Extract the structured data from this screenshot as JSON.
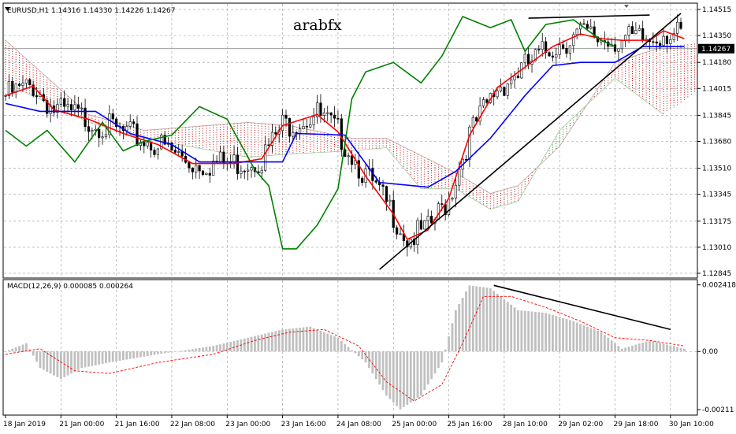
{
  "chart_data": {
    "type": "line",
    "header": "EURUSD,H1  1.14316 1.14330 1.14226 1.14267",
    "watermark": "arabfx",
    "price_axis": {
      "ticks": [
        "1.14515",
        "1.14350",
        "1.14180",
        "1.14015",
        "1.13845",
        "1.13680",
        "1.13510",
        "1.13345",
        "1.13175",
        "1.13010",
        "1.12845"
      ],
      "tick_values": [
        1.14515,
        1.1435,
        1.1418,
        1.14015,
        1.13845,
        1.1368,
        1.1351,
        1.13345,
        1.13175,
        1.1301,
        1.12845
      ],
      "range": [
        1.1282,
        1.1455
      ],
      "current_price": "1.14267",
      "current_value": 1.14267
    },
    "time_axis": {
      "labels": [
        "18 Jan 2019",
        "21 Jan 00:00",
        "21 Jan 16:00",
        "22 Jan 08:00",
        "23 Jan 00:00",
        "23 Jan 16:00",
        "24 Jan 08:00",
        "25 Jan 00:00",
        "25 Jan 16:00",
        "28 Jan 10:00",
        "29 Jan 02:00",
        "29 Jan 18:00",
        "30 Jan 10:00"
      ],
      "bars_per_label": 16,
      "total_bars": 200
    },
    "price_series": [
      {
        "color": "#ff0000",
        "role": "tenkan",
        "points": [
          [
            0,
            1.1397
          ],
          [
            8,
            1.1403
          ],
          [
            14,
            1.1388
          ],
          [
            24,
            1.1382
          ],
          [
            34,
            1.1373
          ],
          [
            44,
            1.1366
          ],
          [
            54,
            1.1354
          ],
          [
            66,
            1.1354
          ],
          [
            74,
            1.1357
          ],
          [
            80,
            1.1378
          ],
          [
            90,
            1.1385
          ],
          [
            96,
            1.1374
          ],
          [
            104,
            1.1346
          ],
          [
            112,
            1.1322
          ],
          [
            116,
            1.1306
          ],
          [
            122,
            1.1312
          ],
          [
            128,
            1.1332
          ],
          [
            134,
            1.1372
          ],
          [
            142,
            1.1402
          ],
          [
            150,
            1.1415
          ],
          [
            158,
            1.1428
          ],
          [
            166,
            1.1436
          ],
          [
            172,
            1.1433
          ],
          [
            178,
            1.1432
          ],
          [
            186,
            1.1432
          ],
          [
            190,
            1.1438
          ],
          [
            196,
            1.1433
          ]
        ]
      },
      {
        "color": "#0000ff",
        "role": "kijun",
        "points": [
          [
            0,
            1.1392
          ],
          [
            10,
            1.1387
          ],
          [
            26,
            1.1387
          ],
          [
            36,
            1.1373
          ],
          [
            48,
            1.1366
          ],
          [
            56,
            1.1355
          ],
          [
            80,
            1.1355
          ],
          [
            84,
            1.1373
          ],
          [
            98,
            1.1372
          ],
          [
            108,
            1.1342
          ],
          [
            122,
            1.1339
          ],
          [
            130,
            1.1349
          ],
          [
            140,
            1.137
          ],
          [
            150,
            1.1397
          ],
          [
            158,
            1.1416
          ],
          [
            166,
            1.1418
          ],
          [
            176,
            1.1418
          ],
          [
            184,
            1.1428
          ],
          [
            196,
            1.1428
          ]
        ]
      },
      {
        "color": "#008000",
        "role": "chikou",
        "points": [
          [
            0,
            1.1375
          ],
          [
            6,
            1.1365
          ],
          [
            12,
            1.1375
          ],
          [
            20,
            1.1355
          ],
          [
            28,
            1.138
          ],
          [
            34,
            1.1362
          ],
          [
            40,
            1.1368
          ],
          [
            48,
            1.1372
          ],
          [
            56,
            1.139
          ],
          [
            64,
            1.1382
          ],
          [
            72,
            1.135
          ],
          [
            76,
            1.134
          ],
          [
            80,
            1.13
          ],
          [
            84,
            1.13
          ],
          [
            90,
            1.1315
          ],
          [
            96,
            1.1338
          ],
          [
            100,
            1.1395
          ],
          [
            104,
            1.1412
          ],
          [
            112,
            1.1418
          ],
          [
            120,
            1.1405
          ],
          [
            126,
            1.1422
          ],
          [
            132,
            1.1447
          ],
          [
            140,
            1.144
          ],
          [
            146,
            1.1445
          ],
          [
            150,
            1.1425
          ],
          [
            156,
            1.1442
          ],
          [
            164,
            1.1445
          ],
          [
            172,
            1.1432
          ],
          [
            176,
            1.1428
          ]
        ]
      }
    ],
    "cloud_bands": [
      {
        "color": "#c00000",
        "points": [
          [
            0,
            1.1432,
            1.1405
          ],
          [
            24,
            1.1385,
            1.138
          ],
          [
            40,
            1.1375,
            1.137
          ],
          [
            70,
            1.138,
            1.1358
          ],
          [
            82,
            1.1378,
            1.136
          ],
          [
            100,
            1.137,
            1.1362
          ],
          [
            110,
            1.137,
            1.1364
          ],
          [
            120,
            1.1359,
            1.1338
          ],
          [
            130,
            1.1348,
            1.1338
          ],
          [
            140,
            1.1335,
            1.1325
          ],
          [
            148,
            1.134,
            1.133
          ],
          [
            160,
            1.1365,
            1.1375
          ],
          [
            176,
            1.1418,
            1.1408
          ],
          [
            190,
            1.1428,
            1.1385
          ],
          [
            200,
            1.143,
            1.14
          ],
          [
            206,
            1.143,
            1.1418
          ],
          [
            222,
            1.1435,
            1.1425
          ]
        ]
      }
    ],
    "trendlines": [
      {
        "from": [
          108,
          1.1287
        ],
        "to": [
          195,
          1.1449
        ]
      },
      {
        "from": [
          151,
          1.1446
        ],
        "to": [
          186,
          1.1448
        ]
      }
    ],
    "macd": {
      "label": "MACD(12,26,9) 0.000085 0.000264",
      "ticks": [
        "0.002418",
        "0.00",
        "-0.00211"
      ],
      "tick_values": [
        0.002418,
        0.0,
        -0.00211
      ],
      "range": [
        -0.00228,
        0.00258
      ],
      "histogram_keypoints": [
        [
          0,
          0.0
        ],
        [
          6,
          0.0003
        ],
        [
          10,
          -0.0006
        ],
        [
          16,
          -0.001
        ],
        [
          22,
          -0.0006
        ],
        [
          30,
          -0.0004
        ],
        [
          44,
          -0.0001
        ],
        [
          60,
          0.0002
        ],
        [
          70,
          0.0005
        ],
        [
          80,
          0.0008
        ],
        [
          88,
          0.0009
        ],
        [
          96,
          0.0005
        ],
        [
          104,
          -0.0004
        ],
        [
          110,
          -0.0016
        ],
        [
          114,
          -0.0021
        ],
        [
          120,
          -0.0016
        ],
        [
          126,
          -0.0004
        ],
        [
          130,
          0.0015
        ],
        [
          134,
          0.0024
        ],
        [
          140,
          0.0023
        ],
        [
          148,
          0.0015
        ],
        [
          156,
          0.0014
        ],
        [
          164,
          0.0011
        ],
        [
          172,
          0.0007
        ],
        [
          178,
          0.0001
        ],
        [
          186,
          0.0004
        ],
        [
          196,
          0.0001
        ]
      ],
      "signal_keypoints": [
        [
          0,
          -0.0001
        ],
        [
          10,
          0.0001
        ],
        [
          20,
          -0.0007
        ],
        [
          30,
          -0.0008
        ],
        [
          44,
          -0.0004
        ],
        [
          60,
          -0.0001
        ],
        [
          72,
          0.0004
        ],
        [
          82,
          0.0007
        ],
        [
          92,
          0.0008
        ],
        [
          102,
          0.0002
        ],
        [
          110,
          -0.0011
        ],
        [
          118,
          -0.0018
        ],
        [
          126,
          -0.0012
        ],
        [
          132,
          0.0003
        ],
        [
          138,
          0.002
        ],
        [
          146,
          0.002
        ],
        [
          156,
          0.0016
        ],
        [
          166,
          0.0011
        ],
        [
          176,
          0.0005
        ],
        [
          186,
          0.0004
        ],
        [
          196,
          0.0002
        ]
      ],
      "trendline": {
        "from": [
          141,
          0.0024
        ],
        "to": [
          192,
          0.0008
        ]
      }
    }
  }
}
